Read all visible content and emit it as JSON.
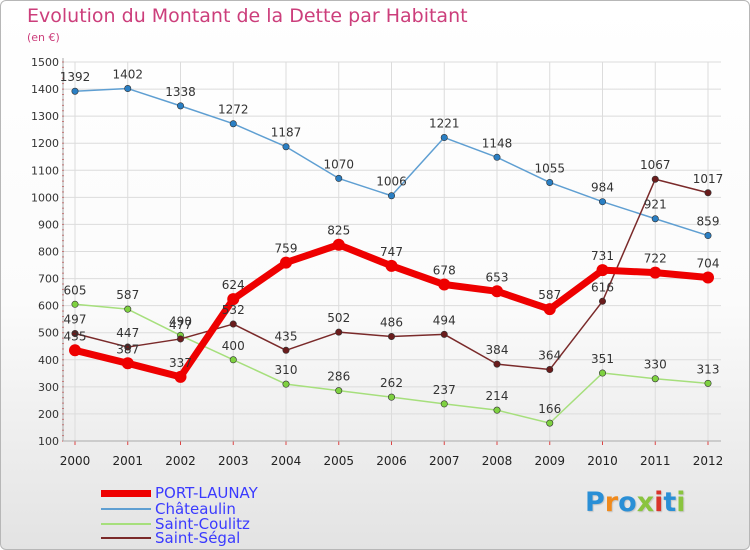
{
  "chart_data": {
    "type": "line",
    "title": "Evolution du Montant de la Dette par Habitant",
    "subtitle": "(en €)",
    "x": [
      "2000",
      "2001",
      "2002",
      "2003",
      "2004",
      "2005",
      "2006",
      "2007",
      "2008",
      "2009",
      "2010",
      "2011",
      "2012"
    ],
    "ylim": [
      100,
      1500
    ],
    "yticks": [
      100,
      200,
      300,
      400,
      500,
      600,
      700,
      800,
      900,
      1000,
      1100,
      1200,
      1300,
      1400,
      1500
    ],
    "grid": true,
    "legend_position": "bottom-left",
    "series": [
      {
        "name": "Châteaulin",
        "color": "#5f9fd2",
        "marker": "#2a7fc4",
        "width": 1.5,
        "values": [
          1392,
          1402,
          1338,
          1272,
          1187,
          1070,
          1006,
          1221,
          1148,
          1055,
          984,
          921,
          859
        ]
      },
      {
        "name": "Saint-Coulitz",
        "color": "#a6df7c",
        "marker": "#7ed140",
        "width": 1.5,
        "values": [
          605,
          587,
          490,
          400,
          310,
          286,
          262,
          237,
          214,
          166,
          351,
          330,
          313
        ]
      },
      {
        "name": "Saint-Ségal",
        "color": "#7a2a2a",
        "marker": "#6a1c1c",
        "width": 1.5,
        "values": [
          497,
          447,
          477,
          532,
          435,
          502,
          486,
          494,
          384,
          364,
          616,
          1067,
          1017
        ]
      },
      {
        "name": "PORT-LAUNAY",
        "color": "#ee0000",
        "marker": "#ee0000",
        "width": 7,
        "values": [
          435,
          387,
          337,
          624,
          759,
          825,
          747,
          678,
          653,
          587,
          731,
          722,
          704
        ]
      }
    ]
  },
  "legend": {
    "items": [
      {
        "label": "PORT-LAUNAY",
        "color": "#ee0000",
        "thickness": 7
      },
      {
        "label": "Châteaulin",
        "color": "#5f9fd2",
        "thickness": 2
      },
      {
        "label": "Saint-Coulitz",
        "color": "#a6df7c",
        "thickness": 2
      },
      {
        "label": "Saint-Ségal",
        "color": "#7a2a2a",
        "thickness": 2
      }
    ]
  },
  "brand": {
    "text": "Proxiti",
    "letter_colors": [
      "#2a8fd6",
      "#f08a1c",
      "#2a8fd6",
      "#8ac43f",
      "#d9342b",
      "#2a8fd6",
      "#8ac43f"
    ]
  }
}
